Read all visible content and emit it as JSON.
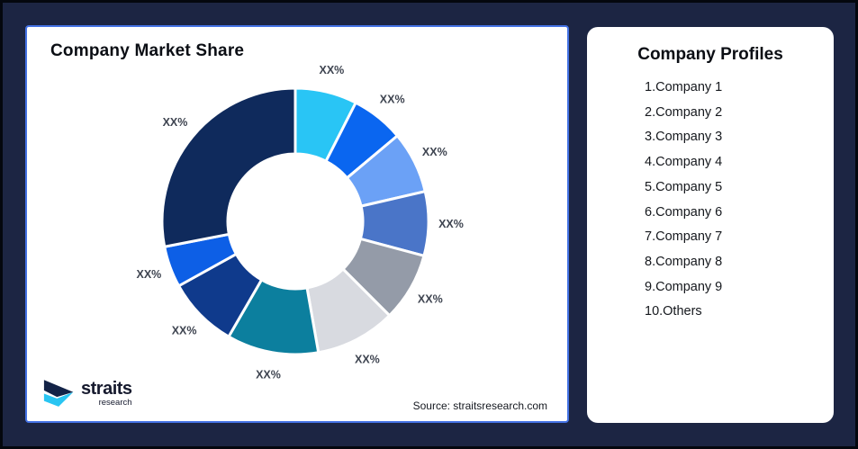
{
  "window": {
    "background": "#1C2543",
    "frame_border": "#04070E",
    "left_card_border": "#4472E4"
  },
  "market_share_card": {
    "title": "Company Market Share",
    "source": "Source: straitsresearch.com",
    "brand": {
      "name": "straits",
      "subname": "research",
      "navy": "#132347",
      "cyan": "#29C5F2"
    }
  },
  "profiles_card": {
    "title": "Company Profiles",
    "items": [
      "1.Company 1",
      "2.Company 2",
      "3.Company 3",
      "4.Company 4",
      "5.Company 5",
      "6.Company 6",
      "7.Company 7",
      "8.Company 8",
      "9.Company 9",
      "10.Others"
    ]
  },
  "chart_data": {
    "type": "pie",
    "variant": "donut",
    "title": "Company Market Share",
    "legend_position": "none",
    "value_labels_placeholder": "XX%",
    "segments": [
      {
        "id": "segment-1",
        "label": "XX%",
        "start_deg": 0,
        "end_deg": 27,
        "est_share_pct": 7.5,
        "color": "#29C5F5"
      },
      {
        "id": "segment-2",
        "label": "XX%",
        "start_deg": 27,
        "end_deg": 50,
        "est_share_pct": 6.4,
        "color": "#0A66F0"
      },
      {
        "id": "segment-3",
        "label": "XX%",
        "start_deg": 50,
        "end_deg": 77,
        "est_share_pct": 7.5,
        "color": "#6BA1F6"
      },
      {
        "id": "segment-4",
        "label": "XX%",
        "start_deg": 77,
        "end_deg": 105,
        "est_share_pct": 7.8,
        "color": "#4A75C8"
      },
      {
        "id": "segment-5",
        "label": "XX%",
        "start_deg": 105,
        "end_deg": 135,
        "est_share_pct": 8.3,
        "color": "#949BA8"
      },
      {
        "id": "segment-6",
        "label": "XX%",
        "start_deg": 135,
        "end_deg": 170,
        "est_share_pct": 9.7,
        "color": "#D8DAE0"
      },
      {
        "id": "segment-7",
        "label": "XX%",
        "start_deg": 170,
        "end_deg": 210,
        "est_share_pct": 11.1,
        "color": "#0C7F9E"
      },
      {
        "id": "segment-8",
        "label": "XX%",
        "start_deg": 210,
        "end_deg": 241,
        "est_share_pct": 8.6,
        "color": "#0F3A8C"
      },
      {
        "id": "segment-9",
        "label": "XX%",
        "start_deg": 241,
        "end_deg": 259,
        "est_share_pct": 5.0,
        "color": "#0D5FE6"
      },
      {
        "id": "segment-10",
        "label": "XX%",
        "start_deg": 259,
        "end_deg": 360,
        "est_share_pct": 28.1,
        "color": "#0F2A5C"
      }
    ]
  }
}
